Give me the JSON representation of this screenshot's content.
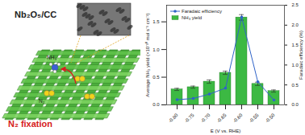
{
  "chart_data": {
    "type": "bar",
    "xlabel": "E (V vs. RHE)",
    "ylabel": "Average NH₃ yield (×10⁻¹⁰ mol s⁻¹ cm⁻²)",
    "y2label": "Faradaic efficiency (%)",
    "categories": [
      "-0.80",
      "-0.75",
      "-0.70",
      "-0.65",
      "-0.60",
      "-0.55",
      "-0.50"
    ],
    "series": [
      {
        "name": "Faradaic efficiency",
        "type": "line",
        "axis": "y2",
        "color": "#2f63c8",
        "marker": "circle",
        "values": [
          0.13,
          0.16,
          0.27,
          0.42,
          2.2,
          0.58,
          0.12
        ]
      },
      {
        "name": "NH₃ yield",
        "type": "bar",
        "color": "#3cb943",
        "values": [
          0.28,
          0.32,
          0.42,
          0.58,
          1.58,
          0.38,
          0.25
        ],
        "errors": [
          0.02,
          0.02,
          0.03,
          0.03,
          0.05,
          0.03,
          0.02
        ]
      }
    ],
    "ylim": [
      0,
      1.8
    ],
    "yticks": [
      {
        "value": 0,
        "label": "0.0"
      },
      {
        "value": 0.5,
        "label": "0.5"
      },
      {
        "value": 1,
        "label": "1.0"
      },
      {
        "value": 1.5,
        "label": "1.5"
      }
    ],
    "y2lim": [
      0,
      2.5
    ],
    "y2ticks": [
      {
        "value": 0,
        "label": "0.0"
      },
      {
        "value": 0.5,
        "label": "0.5"
      },
      {
        "value": 1,
        "label": "1.0"
      },
      {
        "value": 1.5,
        "label": "1.5"
      },
      {
        "value": 2,
        "label": "2.0"
      },
      {
        "value": 2.5,
        "label": "2.5"
      }
    ],
    "legend": "top-left"
  },
  "illustration": {
    "material": "Nb₂O₅/CC",
    "product": "NH₃",
    "reactant": "N₂",
    "caption": "N₂ fixation"
  }
}
